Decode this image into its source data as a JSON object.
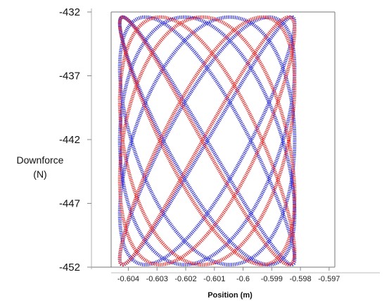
{
  "chart_data": {
    "type": "line",
    "title": "",
    "xlabel": "Position (m)",
    "ylabel_lines": [
      "Downforce",
      "(N)"
    ],
    "xlim": [
      -0.6046,
      -0.5968
    ],
    "ylim": [
      -452,
      -432
    ],
    "x_ticks": [
      -0.604,
      -0.603,
      -0.602,
      -0.601,
      -0.6,
      -0.599,
      -0.598,
      -0.597
    ],
    "x_tick_labels": [
      "-0.604",
      "-0.603",
      "-0.602",
      "-0.601",
      "-0.6",
      "-0.599",
      "-0.598",
      "-0.597"
    ],
    "y_ticks": [
      -432,
      -437,
      -442,
      -447,
      -452
    ],
    "y_tick_labels": [
      "-432",
      "-437",
      "-442",
      "-447",
      "-452"
    ],
    "grid": false,
    "legend": "none",
    "series": [
      {
        "color": "#2323d8",
        "x_range": [
          -0.6043,
          -0.5982
        ],
        "y_range": [
          -451.8,
          -432.4
        ],
        "x_freq": 5,
        "y_freq": 6,
        "phase": 0.0,
        "samples": 1400
      },
      {
        "color": "#e61e1e",
        "x_range": [
          -0.6043,
          -0.5982
        ],
        "y_range": [
          -451.8,
          -432.4
        ],
        "x_freq": 4,
        "y_freq": 5,
        "phase": 1.2,
        "samples": 1200
      }
    ]
  }
}
